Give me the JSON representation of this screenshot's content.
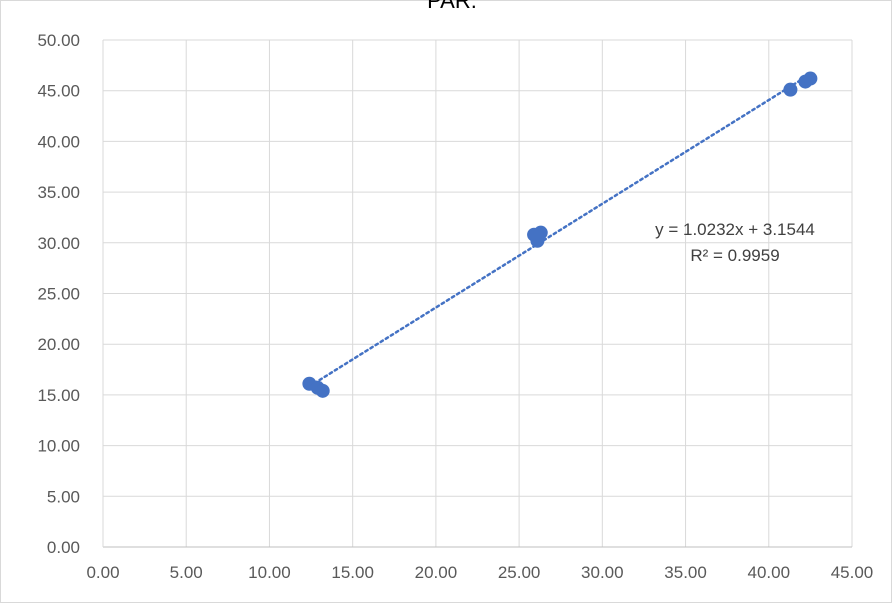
{
  "chart_data": {
    "type": "scatter",
    "title": "PAR.",
    "xlabel": "",
    "ylabel": "",
    "xlim": [
      0,
      45
    ],
    "ylim": [
      0,
      50
    ],
    "x_ticks": [
      "0.00",
      "5.00",
      "10.00",
      "15.00",
      "20.00",
      "25.00",
      "30.00",
      "35.00",
      "40.00",
      "45.00"
    ],
    "y_ticks": [
      "0.00",
      "5.00",
      "10.00",
      "15.00",
      "20.00",
      "25.00",
      "30.00",
      "35.00",
      "40.00",
      "45.00",
      "50.00"
    ],
    "grid": true,
    "legend": "none",
    "marker_color": "#4472C4",
    "trendline_color": "#4472C4",
    "series": [
      {
        "x": [
          12.4,
          12.9,
          13.2,
          25.9,
          26.1,
          26.3,
          41.3,
          42.2,
          42.5
        ],
        "y": [
          16.1,
          15.7,
          15.4,
          30.8,
          30.2,
          31.0,
          45.1,
          45.9,
          46.2
        ]
      }
    ],
    "trendline": {
      "type": "linear",
      "slope": 1.0232,
      "intercept": 3.1544,
      "x_range": [
        12.4,
        42.5
      ],
      "equation_label": "y = 1.0232x + 3.1544",
      "r2_label": "R² = 0.9959"
    }
  }
}
